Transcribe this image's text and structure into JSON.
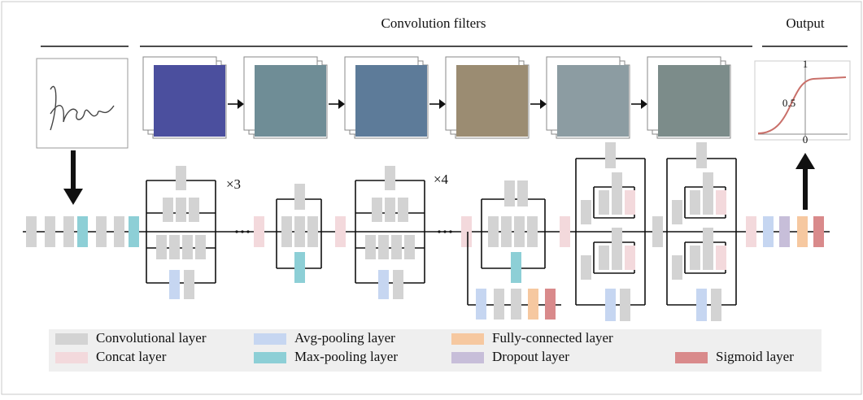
{
  "header": {
    "title": "Convolution filters",
    "output_title": "Output"
  },
  "plot": {
    "y_top": "1",
    "y_mid": "0.5",
    "x_zero": "0"
  },
  "repeats": [
    "×3",
    "×4"
  ],
  "legend": [
    {
      "label": "Convolutional layer",
      "color": "#d3d3d3"
    },
    {
      "label": "Avg-pooling layer",
      "color": "#c6d6f1"
    },
    {
      "label": "Fully-connected layer",
      "color": "#f6c8a0"
    },
    {
      "label": "Concat layer",
      "color": "#f3d9dc"
    },
    {
      "label": "Max-pooling layer",
      "color": "#8dcfd6"
    },
    {
      "label": "Dropout layer",
      "color": "#c7bed9"
    },
    {
      "label": "Sigmoid layer",
      "color": "#d98a8b"
    }
  ]
}
